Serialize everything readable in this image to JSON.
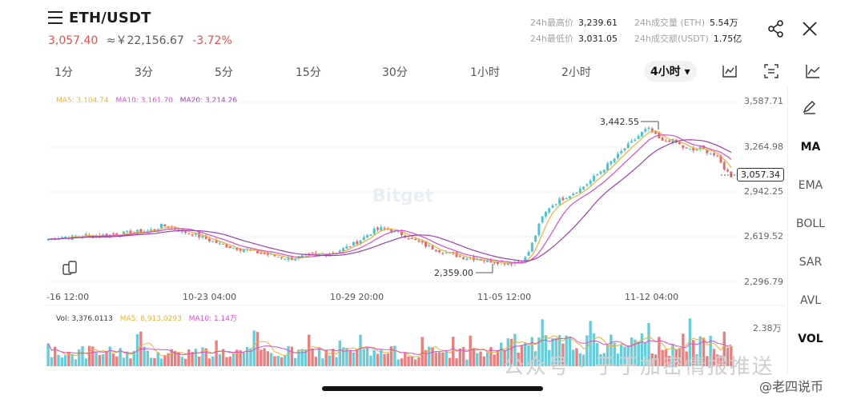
{
  "header": {
    "pair": "ETH/USDT",
    "last_price": "3,057.40",
    "cny_price": "≈￥22,156.67",
    "change_pct": "-3.72%"
  },
  "stats": [
    {
      "key": "24h最高价",
      "value": "3,239.61"
    },
    {
      "key": "24h成交量 (ETH)",
      "value": "5.54万"
    },
    {
      "key": "24h最低价",
      "value": "3,031.05"
    },
    {
      "key": "24h成交额(USDT)",
      "value": "1.75亿"
    }
  ],
  "timeframes": [
    "1分",
    "3分",
    "5分",
    "15分",
    "30分",
    "1小时",
    "2小时",
    "4小时 ▾"
  ],
  "active_timeframe": "4小时 ▾",
  "ma_legend": {
    "ma5": "MA5: 3,104.74",
    "ma10": "MA10: 3,161.70",
    "ma20": "MA20: 3,214.26"
  },
  "price_axis": [
    "3,587.71",
    "3,264.98",
    "2,942.25",
    "2,619.52",
    "2,296.79"
  ],
  "current_price_tag": "3,057.34",
  "high_marker": "3,442.55",
  "low_marker": "2,359.00",
  "time_axis": [
    "-16 12:00",
    "10-23 04:00",
    "10-29 20:00",
    "11-05 12:00",
    "11-12 04:00"
  ],
  "volume_legend": {
    "vol": "Vol: 3,376.0113",
    "ma5": "MA5: 8,913.0293",
    "ma10": "MA10: 1.14万"
  },
  "volume_axis_max": "2.38万",
  "side_menu": [
    "MA",
    "EMA",
    "BOLL",
    "SAR",
    "AVL",
    "VOL"
  ],
  "watermark_center": "Bitget",
  "watermark_bottom": "公众号 · 于于加密情报推送",
  "watermark_author": "@老四说币",
  "colors": {
    "up": "#4fc3d2",
    "down": "#e46a6a",
    "ma5": "#e8b23a",
    "ma10": "#d64fc6",
    "ma20": "#9a3fb0",
    "accent_red": "#e0514d"
  },
  "chart_data": {
    "type": "candlestick",
    "x_labels": [
      "-16 12:00",
      "10-23 04:00",
      "10-29 20:00",
      "11-05 12:00",
      "11-12 04:00"
    ],
    "ylim": [
      2296.79,
      3587.71
    ],
    "close_path": [
      2600,
      2612,
      2620,
      2615,
      2625,
      2630,
      2622,
      2628,
      2632,
      2640,
      2645,
      2650,
      2655,
      2660,
      2670,
      2700,
      2690,
      2670,
      2655,
      2640,
      2620,
      2600,
      2580,
      2560,
      2545,
      2535,
      2525,
      2515,
      2500,
      2490,
      2480,
      2470,
      2462,
      2470,
      2480,
      2488,
      2495,
      2502,
      2512,
      2535,
      2560,
      2590,
      2630,
      2665,
      2680,
      2670,
      2650,
      2630,
      2600,
      2575,
      2550,
      2530,
      2512,
      2495,
      2480,
      2470,
      2465,
      2455,
      2445,
      2440,
      2435,
      2430,
      2440,
      2470,
      2600,
      2750,
      2830,
      2870,
      2900,
      2930,
      2960,
      3000,
      3050,
      3100,
      3150,
      3200,
      3260,
      3300,
      3360,
      3400,
      3350,
      3300,
      3320,
      3290,
      3250,
      3240,
      3260,
      3230,
      3200,
      3120,
      3057
    ]
  }
}
